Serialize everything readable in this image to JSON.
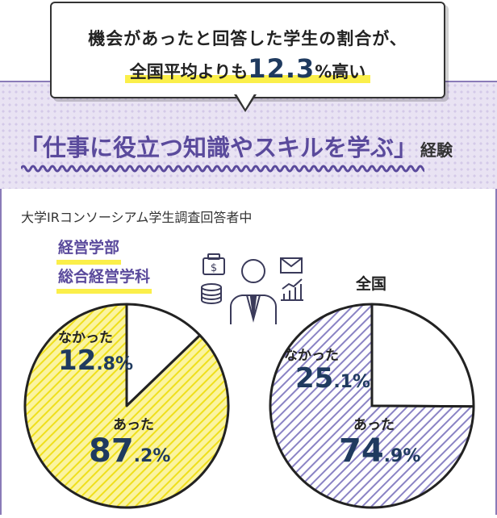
{
  "bubble": {
    "line1": "機会があったと回答した学生の割合が、",
    "line2_pre": "全国平均よりも",
    "line2_num": "12.3",
    "line2_unit": "%",
    "line2_post": "高い"
  },
  "headline": {
    "main": "「仕事に役立つ知識やスキルを学ぶ」",
    "suffix": "経験"
  },
  "subtitle": "大学IRコンソーシアム学生調査回答者中",
  "dept": [
    "経営学部",
    "総合経営学科"
  ],
  "national_label": "全国",
  "colors": {
    "accent_purple": "#5a4a9c",
    "yellow": "#f6e93a",
    "lavender": "#8a83c4",
    "navy": "#1f3a5f"
  },
  "icons": [
    "wallet-icon",
    "mail-icon",
    "coins-icon",
    "businessperson-icon",
    "growth-chart-icon"
  ],
  "chart_data": [
    {
      "type": "pie",
      "categories": [
        "あった",
        "なかった"
      ],
      "values": [
        87.2,
        12.8
      ],
      "labels": {
        "yes_text": "あった",
        "yes_int": "87",
        "yes_dec": ".2",
        "no_text": "なかった",
        "no_int": "12",
        "no_dec": ".8",
        "unit": "%"
      }
    },
    {
      "type": "pie",
      "title": "全国",
      "categories": [
        "あった",
        "なかった"
      ],
      "values": [
        74.9,
        25.1
      ],
      "labels": {
        "yes_text": "あった",
        "yes_int": "74",
        "yes_dec": ".9",
        "no_text": "なかった",
        "no_int": "25",
        "no_dec": ".1",
        "unit": "%"
      }
    }
  ]
}
